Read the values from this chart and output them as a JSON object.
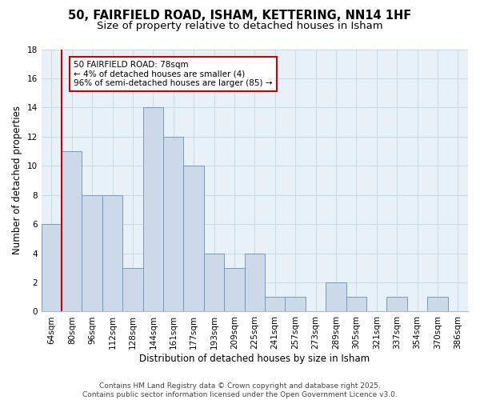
{
  "title1": "50, FAIRFIELD ROAD, ISHAM, KETTERING, NN14 1HF",
  "title2": "Size of property relative to detached houses in Isham",
  "xlabel": "Distribution of detached houses by size in Isham",
  "ylabel": "Number of detached properties",
  "categories": [
    "64sqm",
    "80sqm",
    "96sqm",
    "112sqm",
    "128sqm",
    "144sqm",
    "161sqm",
    "177sqm",
    "193sqm",
    "209sqm",
    "225sqm",
    "241sqm",
    "257sqm",
    "273sqm",
    "289sqm",
    "305sqm",
    "321sqm",
    "337sqm",
    "354sqm",
    "370sqm",
    "386sqm"
  ],
  "values": [
    6,
    11,
    8,
    8,
    3,
    14,
    12,
    10,
    4,
    3,
    4,
    1,
    1,
    0,
    2,
    1,
    0,
    1,
    0,
    1,
    0
  ],
  "bar_color": "#ccd9e8",
  "bar_edge_color": "#7799bb",
  "red_line_x": 0.5,
  "red_line_color": "#cc0000",
  "annotation_text": "50 FAIRFIELD ROAD: 78sqm\n← 4% of detached houses are smaller (4)\n96% of semi-detached houses are larger (85) →",
  "annotation_box_facecolor": "#ffffff",
  "annotation_box_edgecolor": "#cc0000",
  "ylim": [
    0,
    18
  ],
  "yticks": [
    0,
    2,
    4,
    6,
    8,
    10,
    12,
    14,
    16,
    18
  ],
  "grid_color": "#c8daea",
  "background_color": "#e8f0f8",
  "footer_text": "Contains HM Land Registry data © Crown copyright and database right 2025.\nContains public sector information licensed under the Open Government Licence v3.0.",
  "title1_fontsize": 10.5,
  "title2_fontsize": 9.5,
  "xlabel_fontsize": 8.5,
  "ylabel_fontsize": 8.5,
  "tick_fontsize": 7.5,
  "footer_fontsize": 6.5,
  "annotation_fontsize": 7.5
}
